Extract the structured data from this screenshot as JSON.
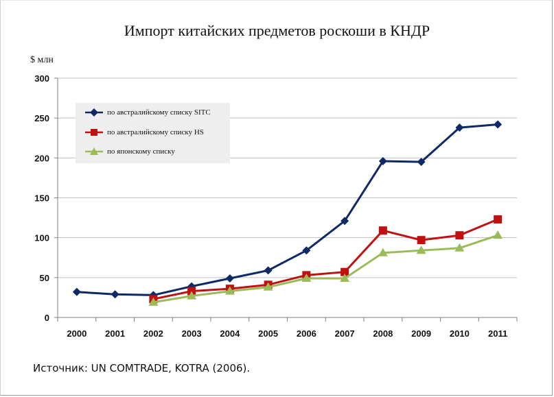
{
  "title": "Импорт китайских предметов роскоши в КНДР",
  "unit_label": "$ млн",
  "source": "Источник: UN COMTRADE, KOTRA (2006).",
  "chart_data": {
    "type": "line",
    "title": "Импорт китайских предметов роскоши в КНДР",
    "xlabel": "",
    "ylabel": "$ млн",
    "x": [
      "2000",
      "2001",
      "2002",
      "2003",
      "2004",
      "2005",
      "2006",
      "2007",
      "2008",
      "2009",
      "2010",
      "2011"
    ],
    "ylim": [
      0,
      300
    ],
    "yticks": [
      0,
      50,
      100,
      150,
      200,
      250,
      300
    ],
    "grid": true,
    "legend_position": "top-left",
    "series": [
      {
        "name": "по австралийскому списку SITC",
        "color": "#0d2a66",
        "marker": "diamond",
        "values": [
          32,
          29,
          28,
          39,
          49,
          59,
          84,
          121,
          196,
          195,
          238,
          242
        ]
      },
      {
        "name": "по австралийскому списку HS",
        "color": "#c0100f",
        "marker": "square",
        "values": [
          null,
          null,
          23,
          33,
          36,
          41,
          53,
          57,
          109,
          97,
          103,
          123
        ]
      },
      {
        "name": "по японскому списку",
        "color": "#9bbb59",
        "marker": "triangle",
        "values": [
          null,
          null,
          19,
          27,
          33,
          38,
          49,
          49,
          81,
          84,
          87,
          103
        ]
      }
    ]
  }
}
